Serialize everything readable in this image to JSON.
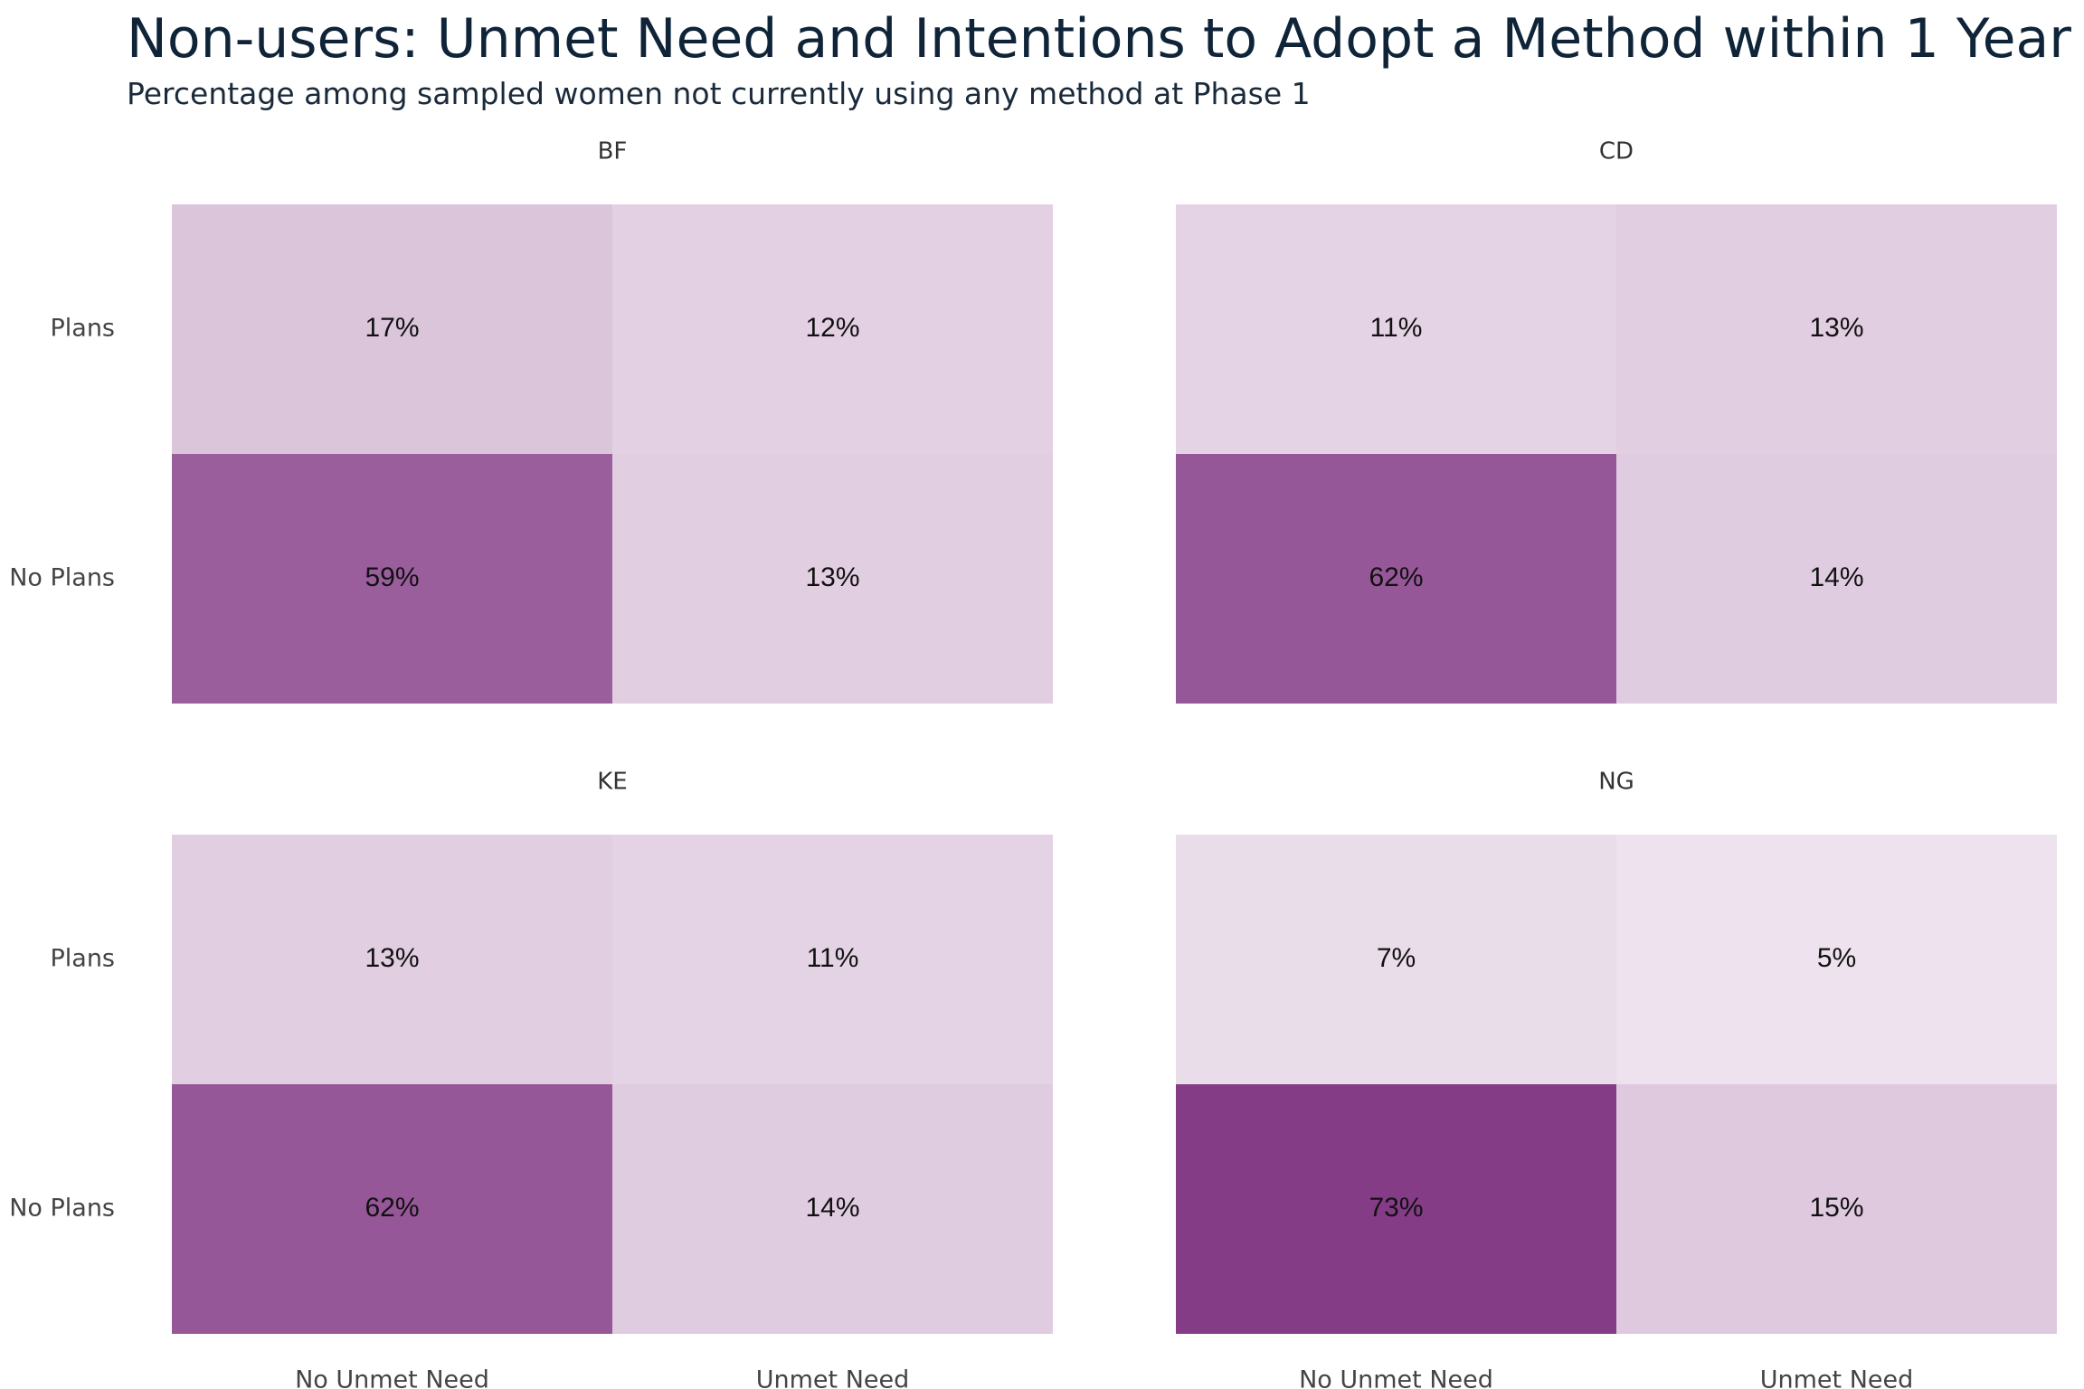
{
  "chart_data": {
    "type": "heatmap",
    "title": "Non-users: Unmet Need and Intentions to Adopt a Method within 1 Year",
    "subtitle": "Percentage among sampled women not currently using any method at Phase 1",
    "x_categories": [
      "No Unmet Need",
      "Unmet Need"
    ],
    "y_categories": [
      "Plans",
      "No Plans"
    ],
    "color_low": "#f5eef5",
    "color_high": "#853c87",
    "value_max": 73,
    "facets": [
      {
        "name": "BF",
        "values": [
          [
            17,
            12
          ],
          [
            59,
            13
          ]
        ],
        "labels": [
          [
            "17%",
            "12%"
          ],
          [
            "59%",
            "13%"
          ]
        ]
      },
      {
        "name": "CD",
        "values": [
          [
            11,
            13
          ],
          [
            62,
            14
          ]
        ],
        "labels": [
          [
            "11%",
            "13%"
          ],
          [
            "62%",
            "14%"
          ]
        ]
      },
      {
        "name": "KE",
        "values": [
          [
            13,
            11
          ],
          [
            62,
            14
          ]
        ],
        "labels": [
          [
            "13%",
            "11%"
          ],
          [
            "62%",
            "14%"
          ]
        ]
      },
      {
        "name": "NG",
        "values": [
          [
            7,
            5
          ],
          [
            73,
            15
          ]
        ],
        "labels": [
          [
            "7%",
            "5%"
          ],
          [
            "73%",
            "15%"
          ]
        ]
      }
    ]
  }
}
